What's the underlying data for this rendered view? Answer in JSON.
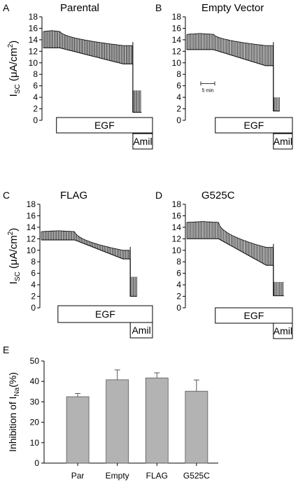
{
  "chart_data": [
    {
      "type": "line",
      "panel_letter": "A",
      "title": "Parental",
      "ylabel_main": "I",
      "ylabel_sub": "SC",
      "ylabel_unit_pre": " (μA/cm",
      "ylabel_unit_sup": "2",
      "ylabel_unit_post": ")",
      "y_ticks": [
        "0",
        "2",
        "4",
        "6",
        "8",
        "10",
        "12",
        "14",
        "16",
        "18"
      ],
      "ylim": [
        0,
        18
      ],
      "x_range_min": [
        0,
        100
      ],
      "trace": {
        "pre_start": 0,
        "pre_end": 15,
        "pre_base": 12.6,
        "pre_top": 15.6,
        "egf_base": 9.8,
        "egf_top": 13.0,
        "egf_end": 82,
        "amil_base": 1.4,
        "amil_top": 5.2,
        "amil_end": 90,
        "spike_every": 1.1
      },
      "bars": [
        {
          "label": "EGF",
          "start": 12,
          "end": 100
        },
        {
          "label": "Amil",
          "start": 82,
          "end": 100
        }
      ]
    },
    {
      "type": "line",
      "panel_letter": "B",
      "title": "Empty Vector",
      "ylabel_main": "",
      "ylabel_sub": "",
      "ylabel_unit_pre": "",
      "ylabel_unit_sup": "",
      "ylabel_unit_post": "",
      "y_ticks": [
        "0",
        "2",
        "4",
        "6",
        "8",
        "10",
        "12",
        "14",
        "16",
        "18"
      ],
      "ylim": [
        0,
        18
      ],
      "x_range_min": [
        0,
        100
      ],
      "scale_bar_label": "5 min",
      "trace": {
        "pre_start": 0,
        "pre_end": 25,
        "pre_base": 12.3,
        "pre_top": 15.1,
        "egf_base": 9.5,
        "egf_top": 13.0,
        "egf_end": 82,
        "amil_base": 1.6,
        "amil_top": 4.0,
        "amil_end": 88,
        "spike_every": 1.2
      },
      "bars": [
        {
          "label": "EGF",
          "start": 27,
          "end": 100
        },
        {
          "label": "Amil",
          "start": 82,
          "end": 100
        }
      ]
    },
    {
      "type": "line",
      "panel_letter": "C",
      "title": "FLAG",
      "ylabel_main": "I",
      "ylabel_sub": "SC",
      "ylabel_unit_pre": " (μA/cm",
      "ylabel_unit_sup": "2",
      "ylabel_unit_post": ")",
      "y_ticks": [
        "0",
        "2",
        "4",
        "6",
        "8",
        "10",
        "12",
        "14",
        "16",
        "18"
      ],
      "ylim": [
        0,
        18
      ],
      "x_range_min": [
        0,
        100
      ],
      "trace": {
        "pre_start": 0,
        "pre_end": 30,
        "pre_base": 11.8,
        "pre_top": 13.4,
        "egf_base": 8.5,
        "egf_top": 10.0,
        "egf_end": 80,
        "amil_base": 2.0,
        "amil_top": 5.4,
        "amil_end": 86,
        "spike_every": 1.1
      },
      "bars": [
        {
          "label": "EGF",
          "start": 15,
          "end": 100
        },
        {
          "label": "Amil",
          "start": 80,
          "end": 100
        }
      ]
    },
    {
      "type": "line",
      "panel_letter": "D",
      "title": "G525C",
      "ylabel_main": "",
      "ylabel_sub": "",
      "ylabel_unit_pre": "",
      "ylabel_unit_sup": "",
      "ylabel_unit_post": "",
      "y_ticks": [
        "0",
        "2",
        "4",
        "6",
        "8",
        "10",
        "12",
        "14",
        "16",
        "18"
      ],
      "ylim": [
        0,
        18
      ],
      "x_range_min": [
        0,
        100
      ],
      "trace": {
        "pre_start": 0,
        "pre_end": 30,
        "pre_base": 12.0,
        "pre_top": 15.0,
        "egf_base": 7.4,
        "egf_top": 10.5,
        "egf_end": 82,
        "amil_base": 2.1,
        "amil_top": 4.5,
        "amil_end": 92,
        "spike_every": 1.2
      },
      "bars": [
        {
          "label": "EGF",
          "start": 27,
          "end": 100
        },
        {
          "label": "Amil",
          "start": 82,
          "end": 100
        }
      ]
    },
    {
      "type": "bar",
      "panel_letter": "E",
      "ylabel_main": "Inhibition of I",
      "ylabel_sub": "Na",
      "ylabel_post": "(%)",
      "categories": [
        "Par",
        "Empty",
        "FLAG",
        "G525C"
      ],
      "values": [
        32.5,
        40.8,
        41.7,
        35.2
      ],
      "errors": [
        1.6,
        4.8,
        2.5,
        5.5
      ],
      "y_ticks": [
        "0",
        "10",
        "20",
        "30",
        "40",
        "50"
      ],
      "ylim": [
        0,
        50
      ],
      "bar_color": "#b3b3b3"
    }
  ]
}
